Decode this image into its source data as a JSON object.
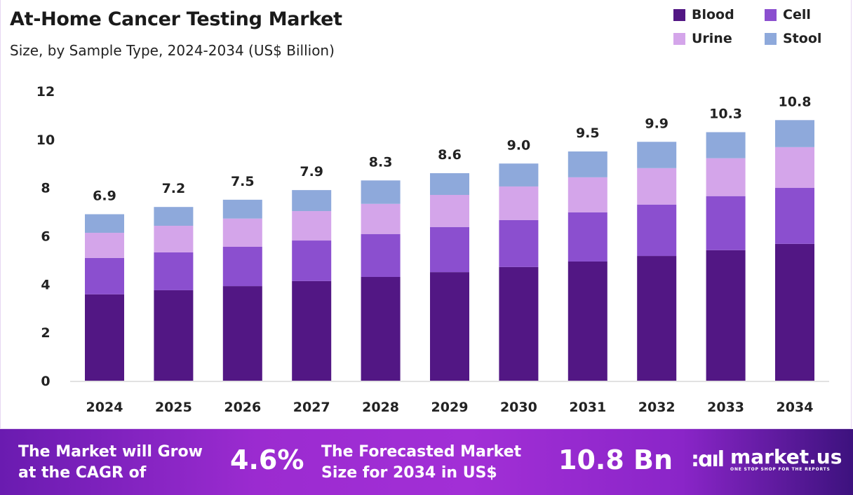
{
  "chart_data": {
    "type": "bar",
    "stacked": true,
    "title": "At-Home Cancer Testing Market",
    "subtitle": "Size, by Sample Type, 2024-2034 (US$ Billion)",
    "categories": [
      "2024",
      "2025",
      "2026",
      "2027",
      "2028",
      "2029",
      "2030",
      "2031",
      "2032",
      "2033",
      "2034"
    ],
    "series": [
      {
        "name": "Blood",
        "color": "#521784",
        "values": [
          3.58,
          3.75,
          3.92,
          4.13,
          4.3,
          4.5,
          4.71,
          4.94,
          5.17,
          5.41,
          5.67
        ]
      },
      {
        "name": "Cell",
        "color": "#8b4fcf",
        "values": [
          1.51,
          1.57,
          1.63,
          1.68,
          1.78,
          1.87,
          1.95,
          2.04,
          2.13,
          2.24,
          2.32
        ]
      },
      {
        "name": "Urine",
        "color": "#d4a5ea",
        "values": [
          1.04,
          1.1,
          1.17,
          1.22,
          1.25,
          1.33,
          1.39,
          1.45,
          1.51,
          1.57,
          1.69
        ]
      },
      {
        "name": "Stool",
        "color": "#8ea9db",
        "values": [
          0.77,
          0.78,
          0.78,
          0.87,
          0.97,
          0.9,
          0.95,
          1.07,
          1.09,
          1.08,
          1.12
        ]
      }
    ],
    "totals": [
      "6.9",
      "7.2",
      "7.5",
      "7.9",
      "8.3",
      "8.6",
      "9.0",
      "9.5",
      "9.9",
      "10.3",
      "10.8"
    ],
    "ylim": [
      0,
      12
    ],
    "yticks": [
      "0",
      "2",
      "4",
      "6",
      "8",
      "10",
      "12"
    ],
    "grid": false,
    "legend": "top-right"
  },
  "footer": {
    "cagr_text": "The Market will Grow at the CAGR of",
    "cagr_value": "4.6%",
    "forecast_text": "The Forecasted Market Size for 2034 in US$",
    "forecast_value": "10.8 Bn",
    "logo_name": "market.us",
    "logo_tagline": "ONE STOP SHOP FOR THE REPORTS"
  }
}
